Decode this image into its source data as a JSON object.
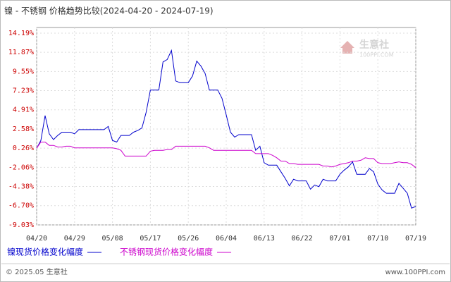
{
  "chart_data": {
    "type": "line",
    "title": "镍 - 不锈钢 价格趋势比较(2024-04-20 - 2024-07-19)",
    "categories": [
      "04/20",
      null,
      null,
      null,
      null,
      null,
      null,
      null,
      null,
      "04/29",
      null,
      null,
      null,
      null,
      null,
      null,
      null,
      null,
      "05/08",
      null,
      null,
      null,
      null,
      null,
      null,
      null,
      null,
      "05/17",
      null,
      null,
      null,
      null,
      null,
      null,
      null,
      null,
      "05/26",
      null,
      null,
      null,
      null,
      null,
      null,
      null,
      null,
      "06/04",
      null,
      null,
      null,
      null,
      null,
      null,
      null,
      null,
      "06/13",
      null,
      null,
      null,
      null,
      null,
      null,
      null,
      null,
      "06/22",
      null,
      null,
      null,
      null,
      null,
      null,
      null,
      null,
      "07/01",
      null,
      null,
      null,
      null,
      null,
      null,
      null,
      null,
      "07/10",
      null,
      null,
      null,
      null,
      null,
      null,
      null,
      null,
      "07/19"
    ],
    "series": [
      {
        "name": "镍现货价格变化幅度",
        "color": "#0000cc",
        "values": [
          0.26,
          1.2,
          4.2,
          2.0,
          1.3,
          1.8,
          2.2,
          2.2,
          2.2,
          2.0,
          2.5,
          2.5,
          2.5,
          2.5,
          2.5,
          2.5,
          2.5,
          2.9,
          1.2,
          1.0,
          1.8,
          1.8,
          1.8,
          2.2,
          2.4,
          2.7,
          4.6,
          7.3,
          7.3,
          7.3,
          10.7,
          11.0,
          12.1,
          8.4,
          8.2,
          8.2,
          8.2,
          9.0,
          10.8,
          10.2,
          9.3,
          7.3,
          7.3,
          7.3,
          6.3,
          4.3,
          2.2,
          1.6,
          1.9,
          1.9,
          1.9,
          1.9,
          0.0,
          0.5,
          -1.5,
          -1.8,
          -1.8,
          -1.8,
          -2.6,
          -3.4,
          -4.3,
          -3.5,
          -3.7,
          -3.7,
          -3.7,
          -4.7,
          -4.2,
          -4.4,
          -3.5,
          -3.7,
          -3.7,
          -3.7,
          -2.9,
          -2.4,
          -2.0,
          -1.4,
          -2.9,
          -2.9,
          -2.9,
          -2.2,
          -2.6,
          -4.1,
          -4.8,
          -5.2,
          -5.2,
          -5.2,
          -4.0,
          -4.6,
          -5.2,
          -7.0,
          -6.8
        ]
      },
      {
        "name": "不锈钢现货价格变化幅度",
        "color": "#cc00cc",
        "values": [
          0.26,
          1.0,
          1.0,
          0.6,
          0.6,
          0.4,
          0.4,
          0.5,
          0.5,
          0.3,
          0.3,
          0.3,
          0.3,
          0.3,
          0.3,
          0.3,
          0.3,
          0.3,
          0.3,
          0.2,
          0.0,
          -0.7,
          -0.7,
          -0.7,
          -0.7,
          -0.7,
          -0.7,
          -0.1,
          0.0,
          0.0,
          0.0,
          0.1,
          0.1,
          0.5,
          0.5,
          0.5,
          0.5,
          0.5,
          0.5,
          0.5,
          0.5,
          0.3,
          0.0,
          0.0,
          0.0,
          0.0,
          0.0,
          0.0,
          0.0,
          0.0,
          0.0,
          0.0,
          -0.4,
          -0.4,
          -0.4,
          -0.4,
          -0.6,
          -0.9,
          -1.3,
          -1.3,
          -1.6,
          -1.6,
          -1.7,
          -1.7,
          -1.7,
          -1.7,
          -1.7,
          -1.7,
          -1.9,
          -1.9,
          -2.0,
          -1.9,
          -1.7,
          -1.6,
          -1.5,
          -1.3,
          -1.3,
          -1.2,
          -0.9,
          -1.0,
          -1.0,
          -1.5,
          -1.6,
          -1.6,
          -1.6,
          -1.5,
          -1.4,
          -1.5,
          -1.5,
          -1.7,
          -2.1
        ]
      }
    ],
    "ylim": [
      -9.03,
      14.19
    ],
    "yticks": [
      {
        "value": 14.19,
        "label": "14.19%"
      },
      {
        "value": 11.87,
        "label": "11.87%"
      },
      {
        "value": 9.55,
        "label": "9.55%"
      },
      {
        "value": 7.23,
        "label": "7.23%"
      },
      {
        "value": 4.91,
        "label": "4.91%"
      },
      {
        "value": 2.58,
        "label": "2.58%"
      },
      {
        "value": 0.26,
        "label": "0.26%"
      },
      {
        "value": -2.06,
        "label": "-2.06%"
      },
      {
        "value": -4.38,
        "label": "-4.38%"
      },
      {
        "value": -6.7,
        "label": "-6.70%"
      },
      {
        "value": -9.03,
        "label": "-9.03%"
      }
    ],
    "grid": true
  },
  "watermark": {
    "name": "生意社",
    "site": "100PPI.COM"
  },
  "footer": {
    "copyright": "© 2025.05 生意社",
    "site": "www.100PPI.com"
  }
}
